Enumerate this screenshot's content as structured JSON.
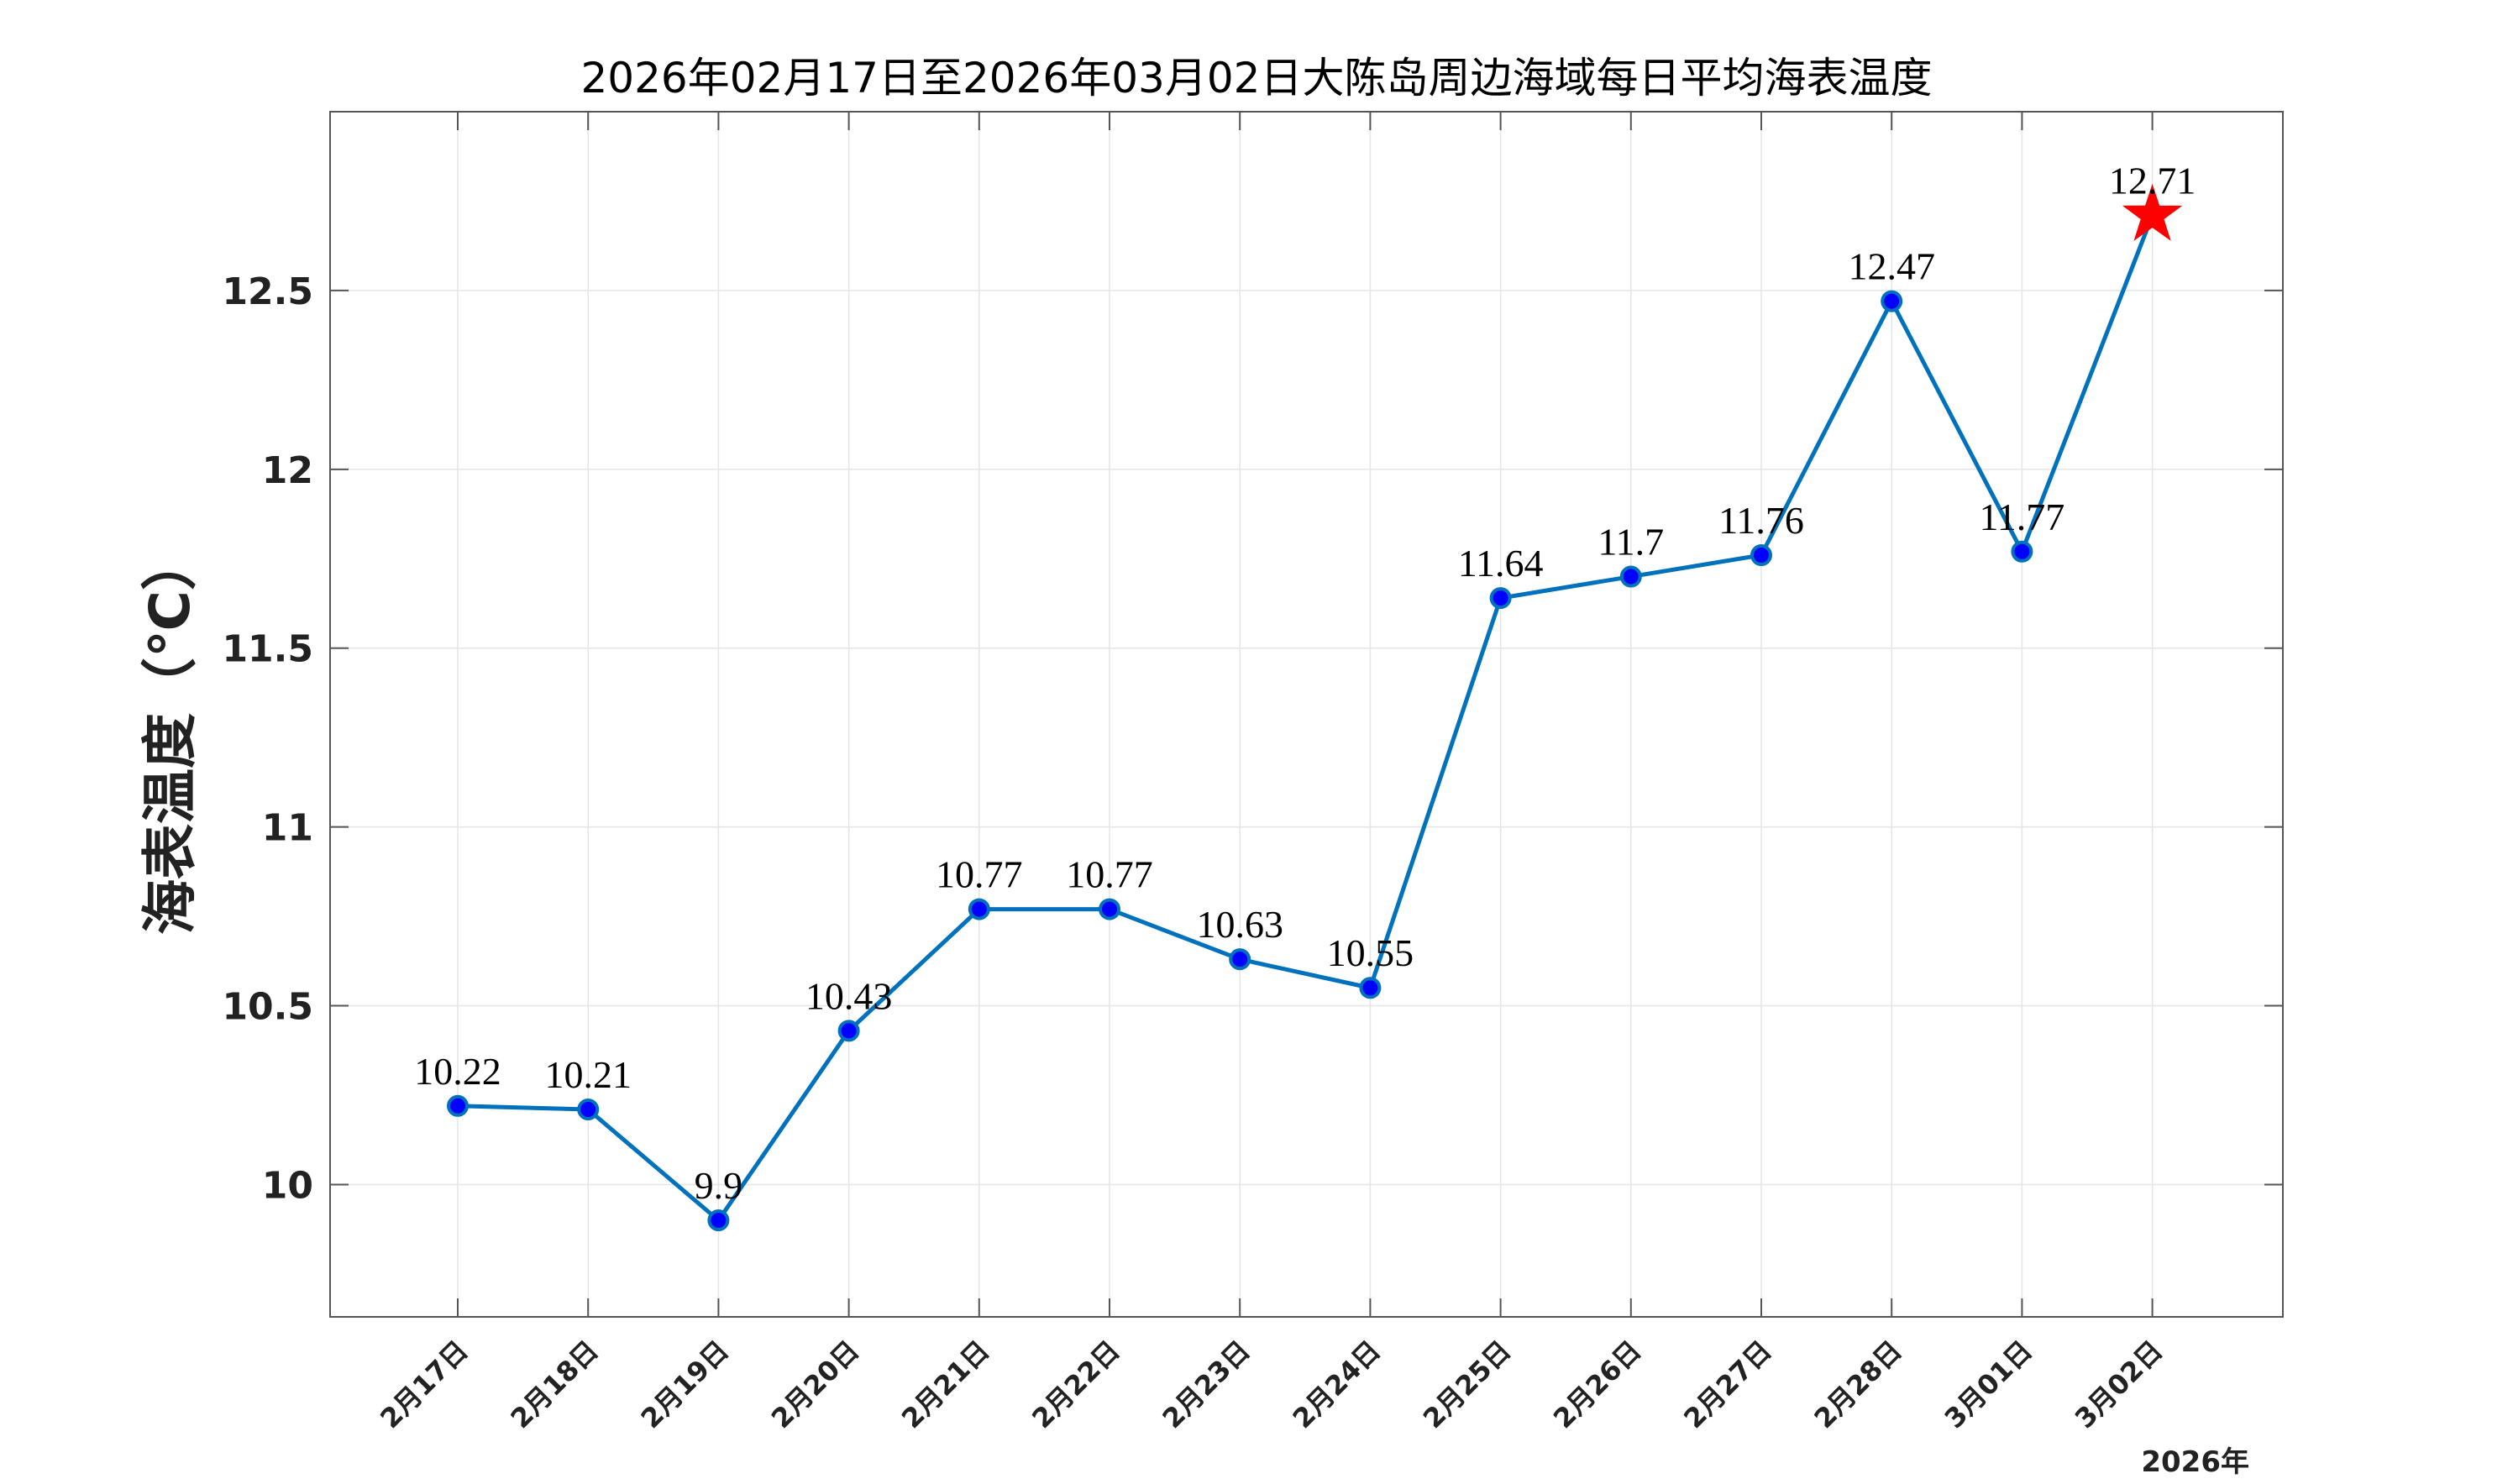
{
  "title": "2026年02月17日至2026年03月02日大陈岛周边海域每日平均海表温度",
  "chart_data": {
    "type": "line",
    "title": "2026年02月17日至2026年03月02日大陈岛周边海域每日平均海表温度",
    "xlabel": "",
    "ylabel": "海表温度（℃）",
    "x_axis_note": "2026年",
    "categories": [
      "2月17日",
      "2月18日",
      "2月19日",
      "2月20日",
      "2月21日",
      "2月22日",
      "2月23日",
      "2月24日",
      "2月25日",
      "2月26日",
      "2月27日",
      "2月28日",
      "3月01日",
      "3月02日"
    ],
    "series": [
      {
        "values": [
          10.22,
          10.21,
          9.9,
          10.43,
          10.77,
          10.77,
          10.63,
          10.55,
          11.64,
          11.7,
          11.76,
          12.47,
          11.77,
          12.71
        ],
        "labels": [
          "10.22",
          "10.21",
          "9.9",
          "10.43",
          "10.77",
          "10.77",
          "10.63",
          "10.55",
          "11.64",
          "11.7",
          "11.76",
          "12.47",
          "11.77",
          "12.71"
        ],
        "highlight_last": "star"
      }
    ],
    "ylim": [
      9.63,
      13.0
    ],
    "yticks": [
      10,
      10.5,
      11,
      11.5,
      12,
      12.5
    ],
    "ytick_labels": [
      "10",
      "10.5",
      "11",
      "11.5",
      "12",
      "12.5"
    ],
    "grid": true,
    "colors": {
      "line": "#0072BD",
      "marker_fill": "#0000FF",
      "marker_edge": "#0072BD",
      "star": "#FF0000",
      "grid": "#E5E5E5",
      "axes": "#555555"
    }
  }
}
